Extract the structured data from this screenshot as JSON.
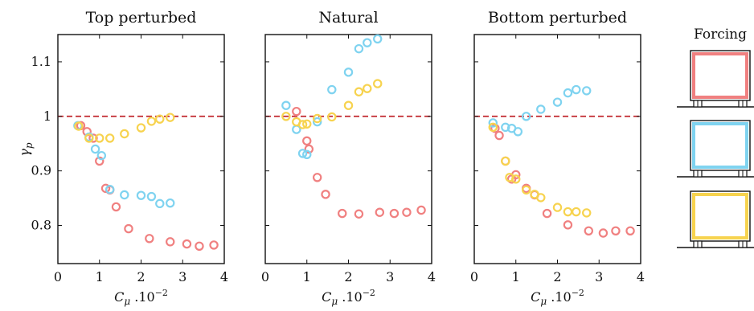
{
  "chart_data": {
    "type": "scatter",
    "xlabel": "C_μ .10^-2",
    "ylabel": "γ_p",
    "xlim": [
      0,
      4
    ],
    "ylim": [
      0.73,
      1.15
    ],
    "xticks": [
      0,
      1,
      2,
      3,
      4
    ],
    "yticks": [
      0.8,
      0.9,
      1,
      1.1
    ],
    "reference_line": {
      "y": 1.0,
      "style": "dashed",
      "color": "#c1272d"
    },
    "grid": false,
    "series_colors": {
      "red": "#f08080",
      "blue": "#7fd3f0",
      "yellow": "#f7d34f"
    },
    "panels": [
      {
        "title": "Top perturbed",
        "series": [
          {
            "color_key": "red",
            "x": [
              0.55,
              0.7,
              0.85,
              1.0,
              1.15,
              1.25,
              1.4,
              1.7,
              2.2,
              2.7,
              3.1,
              3.4,
              3.75
            ],
            "y": [
              0.983,
              0.972,
              0.96,
              0.918,
              0.868,
              0.865,
              0.834,
              0.794,
              0.776,
              0.77,
              0.766,
              0.762,
              0.764
            ]
          },
          {
            "color_key": "blue",
            "x": [
              0.48,
              0.75,
              0.9,
              1.05,
              1.25,
              1.6,
              2.0,
              2.25,
              2.45,
              2.7
            ],
            "y": [
              0.983,
              0.962,
              0.94,
              0.928,
              0.866,
              0.856,
              0.855,
              0.853,
              0.84,
              0.841
            ]
          },
          {
            "color_key": "yellow",
            "x": [
              0.5,
              0.75,
              1.0,
              1.25,
              1.6,
              2.0,
              2.25,
              2.45,
              2.7
            ],
            "y": [
              0.982,
              0.96,
              0.96,
              0.96,
              0.968,
              0.979,
              0.991,
              0.995,
              0.998
            ]
          }
        ]
      },
      {
        "title": "Natural",
        "series": [
          {
            "color_key": "red",
            "x": [
              0.75,
              1.0,
              1.05,
              1.25,
              1.45,
              1.85,
              2.25,
              2.75,
              3.1,
              3.4,
              3.75
            ],
            "y": [
              1.009,
              0.955,
              0.94,
              0.888,
              0.857,
              0.822,
              0.821,
              0.824,
              0.822,
              0.824,
              0.828
            ]
          },
          {
            "color_key": "blue",
            "x": [
              0.5,
              0.75,
              0.9,
              1.0,
              1.25,
              1.6,
              2.0,
              2.25,
              2.45,
              2.7
            ],
            "y": [
              1.02,
              0.976,
              0.932,
              0.93,
              0.99,
              1.049,
              1.081,
              1.124,
              1.135,
              1.142
            ]
          },
          {
            "color_key": "yellow",
            "x": [
              0.5,
              0.75,
              0.9,
              1.0,
              1.25,
              1.6,
              2.0,
              2.25,
              2.45,
              2.7
            ],
            "y": [
              1.0,
              0.99,
              0.985,
              0.986,
              0.996,
              0.999,
              1.02,
              1.045,
              1.051,
              1.06
            ]
          }
        ]
      },
      {
        "title": "Bottom perturbed",
        "series": [
          {
            "color_key": "red",
            "x": [
              0.5,
              0.6,
              0.75,
              0.9,
              1.0,
              1.25,
              1.45,
              1.75,
              2.25,
              2.75,
              3.1,
              3.4,
              3.75
            ],
            "y": [
              0.978,
              0.965,
              0.918,
              0.885,
              0.893,
              0.868,
              0.856,
              0.822,
              0.801,
              0.79,
              0.786,
              0.79,
              0.79
            ]
          },
          {
            "color_key": "blue",
            "x": [
              0.45,
              0.75,
              0.9,
              1.05,
              1.25,
              1.6,
              2.0,
              2.25,
              2.45,
              2.7
            ],
            "y": [
              0.988,
              0.98,
              0.978,
              0.972,
              1.0,
              1.013,
              1.026,
              1.043,
              1.049,
              1.047
            ]
          },
          {
            "color_key": "yellow",
            "x": [
              0.45,
              0.75,
              0.85,
              1.0,
              1.25,
              1.45,
              1.6,
              2.0,
              2.25,
              2.45,
              2.7
            ],
            "y": [
              0.98,
              0.918,
              0.888,
              0.885,
              0.865,
              0.857,
              0.851,
              0.833,
              0.825,
              0.825,
              0.823
            ]
          }
        ]
      }
    ]
  },
  "legend": {
    "title": "Forcing",
    "items": [
      {
        "color_key": "red",
        "color": "#f08080"
      },
      {
        "color_key": "blue",
        "color": "#7fd3f0"
      },
      {
        "color_key": "yellow",
        "color": "#f7d34f"
      }
    ]
  }
}
